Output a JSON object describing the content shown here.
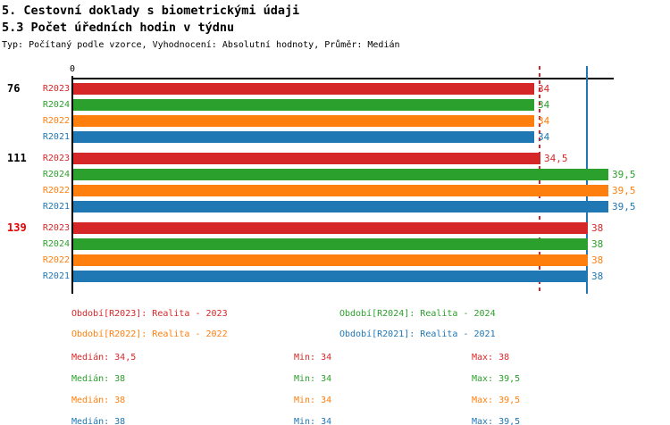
{
  "header": {
    "title1": "5. Cestovní doklady s biometrickými údaji",
    "title2": "5.3 Počet úředních hodin v týdnu",
    "subtitle": "Typ: Počítaný podle vzorce, Vyhodnocení: Absolutní hodnoty, Průměr: Medián"
  },
  "chart_data": {
    "type": "bar",
    "orientation": "horizontal",
    "title": "5.3 Počet úředních hodin v týdnu",
    "axis": {
      "zero_label": "0",
      "min": 0,
      "max_drawn": 39.9,
      "gridlines": false
    },
    "series_colors": {
      "R2023": "#d62728",
      "R2024": "#2ca02c",
      "R2022": "#ff7f0e",
      "R2021": "#1f77b4"
    },
    "series_order": [
      "R2023",
      "R2024",
      "R2022",
      "R2021"
    ],
    "groups": [
      {
        "label": "76",
        "label_color": "#000000",
        "bars": [
          {
            "series": "R2023",
            "value": 34,
            "display": "34"
          },
          {
            "series": "R2024",
            "value": 34,
            "display": "34"
          },
          {
            "series": "R2022",
            "value": 34,
            "display": "34"
          },
          {
            "series": "R2021",
            "value": 34,
            "display": "34"
          }
        ]
      },
      {
        "label": "111",
        "label_color": "#000000",
        "bars": [
          {
            "series": "R2023",
            "value": 34.5,
            "display": "34,5"
          },
          {
            "series": "R2024",
            "value": 39.5,
            "display": "39,5"
          },
          {
            "series": "R2022",
            "value": 39.5,
            "display": "39,5"
          },
          {
            "series": "R2021",
            "value": 39.5,
            "display": "39,5"
          }
        ]
      },
      {
        "label": "139",
        "label_color": "#e60000",
        "bars": [
          {
            "series": "R2023",
            "value": 38,
            "display": "38"
          },
          {
            "series": "R2024",
            "value": 38,
            "display": "38"
          },
          {
            "series": "R2022",
            "value": 38,
            "display": "38"
          },
          {
            "series": "R2021",
            "value": 38,
            "display": "38"
          }
        ]
      }
    ],
    "reference_lines": [
      {
        "value": 34.5,
        "color": "#d62728",
        "style": "dashed"
      },
      {
        "value": 38,
        "color": "#1f77b4",
        "style": "solid"
      }
    ],
    "legend": [
      {
        "label": "Období[R2023]: Realita - 2023",
        "color": "#d62728"
      },
      {
        "label": "Období[R2024]: Realita - 2024",
        "color": "#2ca02c"
      },
      {
        "label": "Období[R2022]: Realita - 2022",
        "color": "#ff7f0e"
      },
      {
        "label": "Období[R2021]: Realita - 2021",
        "color": "#1f77b4"
      }
    ],
    "stats": [
      {
        "color": "#d62728",
        "median": "Medián: 34,5",
        "min": "Min: 34",
        "max": "Max: 38"
      },
      {
        "color": "#2ca02c",
        "median": "Medián: 38",
        "min": "Min: 34",
        "max": "Max: 39,5"
      },
      {
        "color": "#ff7f0e",
        "median": "Medián: 38",
        "min": "Min: 34",
        "max": "Max: 39,5"
      },
      {
        "color": "#1f77b4",
        "median": "Medián: 38",
        "min": "Min: 34",
        "max": "Max: 39,5"
      }
    ]
  }
}
